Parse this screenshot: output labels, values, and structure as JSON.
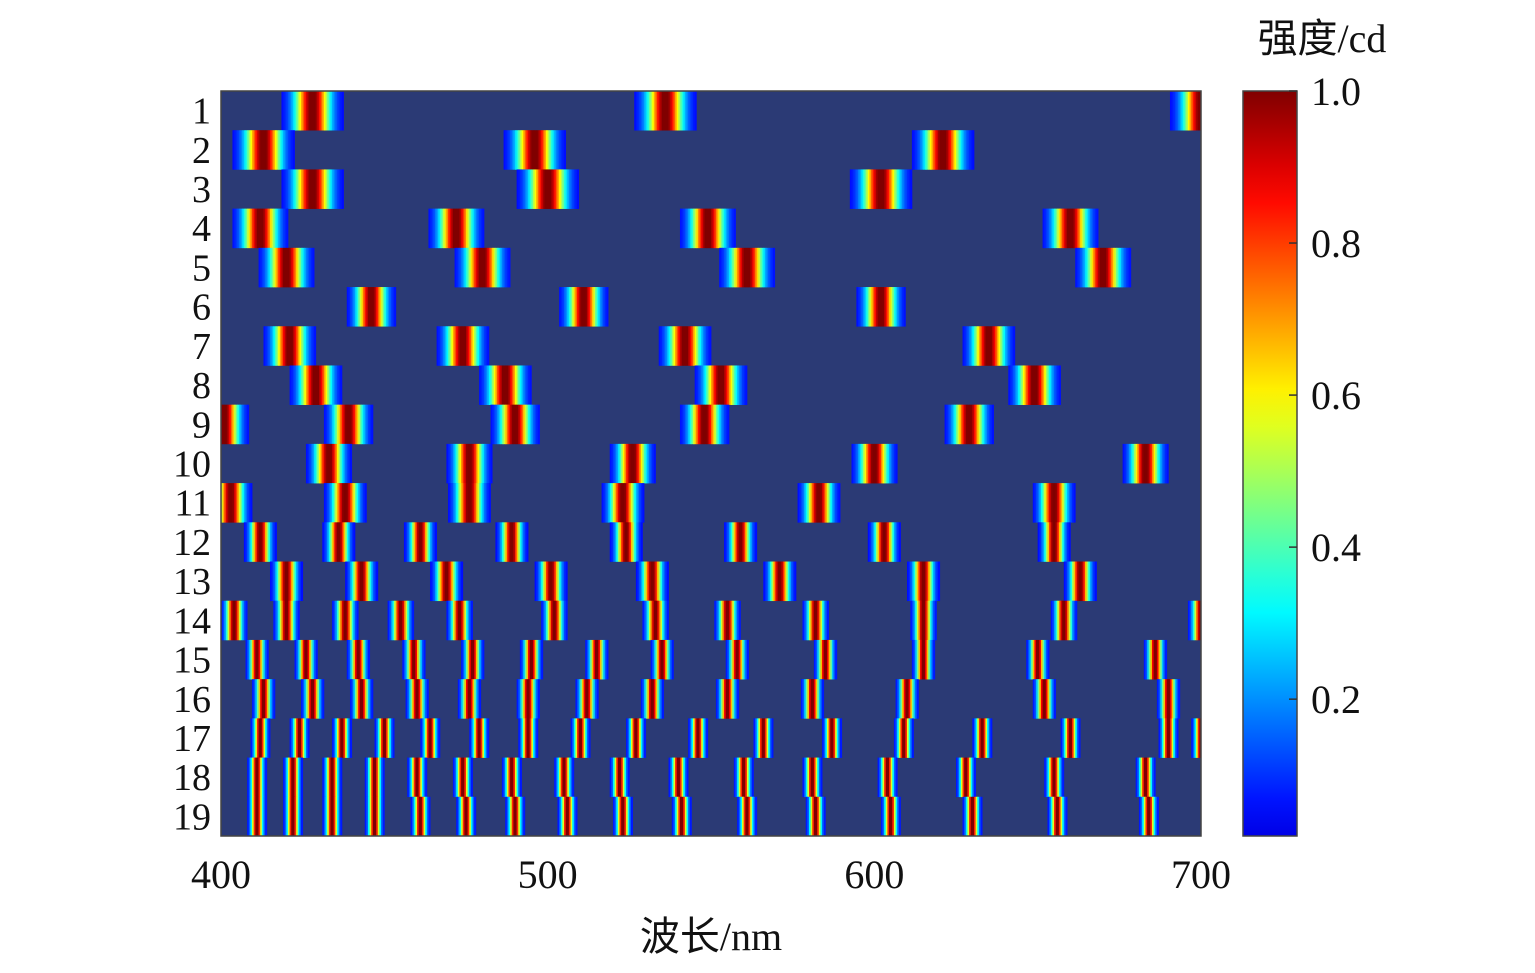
{
  "chart_data": {
    "type": "heatmap",
    "title": "",
    "xlabel": "波长/nm",
    "ylabel": "",
    "colorbar_label": "强度/cd",
    "xlim": [
      400,
      700
    ],
    "x_ticks": [
      400,
      500,
      600,
      700
    ],
    "y_categories": [
      "1",
      "2",
      "3",
      "4",
      "5",
      "6",
      "7",
      "8",
      "9",
      "10",
      "11",
      "12",
      "13",
      "14",
      "15",
      "16",
      "17",
      "18",
      "19"
    ],
    "colorbar_ticks": [
      "0.2",
      "0.4",
      "0.6",
      "0.8",
      "1.0"
    ],
    "colorbar_tick_values": [
      0.2,
      0.4,
      0.6,
      0.8,
      1.0
    ],
    "colorbar_range": [
      0.02,
      1.0
    ],
    "colormap": "jet",
    "background_color": "#2b3a75",
    "rows": [
      {
        "peaks": [
          428,
          536,
          700
        ],
        "width": 3.5
      },
      {
        "peaks": [
          413,
          496,
          621
        ],
        "width": 3.5
      },
      {
        "peaks": [
          428,
          500,
          602
        ],
        "width": 3.5
      },
      {
        "peaks": [
          412,
          472,
          549,
          660
        ],
        "width": 3.2
      },
      {
        "peaks": [
          420,
          480,
          561,
          670
        ],
        "width": 3.2
      },
      {
        "peaks": [
          446,
          511,
          602
        ],
        "width": 2.8
      },
      {
        "peaks": [
          421,
          474,
          542,
          635
        ],
        "width": 3.0
      },
      {
        "peaks": [
          429,
          487,
          553,
          649
        ],
        "width": 3.0
      },
      {
        "peaks": [
          439,
          490,
          548,
          629,
          401
        ],
        "width": 2.8
      },
      {
        "peaks": [
          433,
          476,
          526,
          600,
          683
        ],
        "width": 2.6
      },
      {
        "peaks": [
          403,
          438,
          476,
          523,
          583,
          655
        ],
        "width": 2.4
      },
      {
        "peaks": [
          412,
          436,
          461,
          489,
          524,
          559,
          603,
          655
        ],
        "width": 1.8
      },
      {
        "peaks": [
          420,
          443,
          469,
          501,
          532,
          571,
          615,
          663
        ],
        "width": 1.8
      },
      {
        "peaks": [
          404,
          420,
          438,
          455,
          473,
          502,
          533,
          555,
          582,
          615,
          658,
          700
        ],
        "width": 1.5
      },
      {
        "peaks": [
          411,
          426,
          442,
          459,
          477,
          495,
          515,
          535,
          558,
          585,
          615,
          650,
          686
        ],
        "width": 1.3
      },
      {
        "peaks": [
          413,
          428,
          443,
          460,
          476,
          494,
          512,
          532,
          555,
          581,
          610,
          652,
          690
        ],
        "width": 1.3
      },
      {
        "peaks": [
          412,
          424,
          437,
          450,
          464,
          479,
          494,
          510,
          527,
          546,
          566,
          587,
          609,
          633,
          660,
          690,
          700
        ],
        "width": 1.1
      },
      {
        "peaks": [
          411,
          422,
          434,
          447,
          460,
          474,
          489,
          505,
          522,
          540,
          560,
          581,
          604,
          628,
          655,
          683
        ],
        "width": 1.1
      },
      {
        "peaks": [
          411,
          422,
          434,
          447,
          461,
          475,
          490,
          506,
          523,
          541,
          561,
          582,
          605,
          630,
          656,
          684
        ],
        "width": 1.1
      }
    ]
  }
}
